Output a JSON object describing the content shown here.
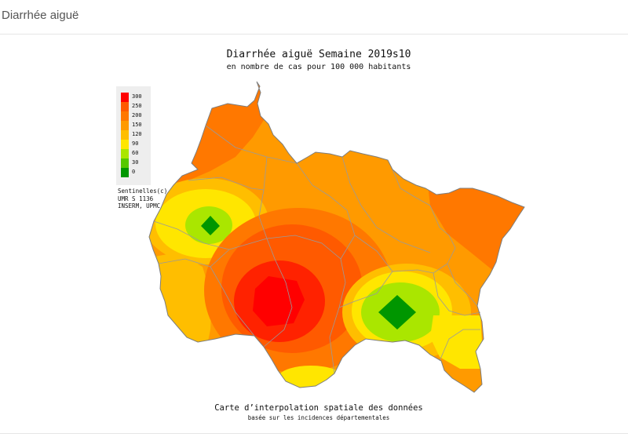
{
  "header": {
    "title": "Diarrhée aiguë"
  },
  "map": {
    "title": "Diarrhée aiguë Semaine 2019s10",
    "subtitle": "en nombre de cas pour 100 000 habitants",
    "footer_line1": "Carte d’interpolation spatiale des données",
    "footer_line2": "basée sur les incidences départementales"
  },
  "legend": {
    "items": [
      {
        "label": "300",
        "color": "#ff0000"
      },
      {
        "label": "250",
        "color": "#ff5a00"
      },
      {
        "label": "200",
        "color": "#ff7800"
      },
      {
        "label": "150",
        "color": "#ff9a00"
      },
      {
        "label": "120",
        "color": "#ffbe00"
      },
      {
        "label": "90",
        "color": "#ffe600"
      },
      {
        "label": "60",
        "color": "#aae600"
      },
      {
        "label": "30",
        "color": "#55c800"
      },
      {
        "label": "0",
        "color": "#009600"
      }
    ]
  },
  "credit": {
    "line1": "Sentinelles(c)",
    "line2": "UMR S 1136",
    "line3": "INSERM, UPMC"
  }
}
